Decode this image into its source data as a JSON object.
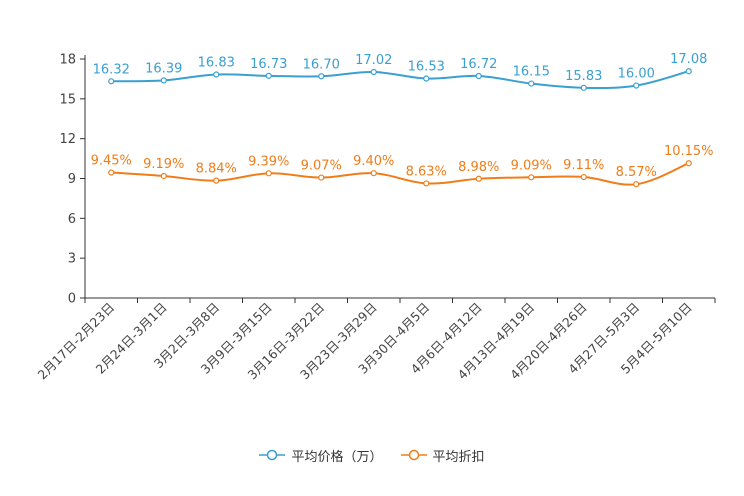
{
  "chart_data": {
    "type": "line",
    "categories": [
      "2月17日-2月23日",
      "2月24日-3月1日",
      "3月2日-3月8日",
      "3月9日-3月15日",
      "3月16日-3月22日",
      "3月23日-3月29日",
      "3月30日-4月5日",
      "4月6日-4月12日",
      "4月13日-4月19日",
      "4月20日-4月26日",
      "4月27日-5月3日",
      "5月4日-5月10日"
    ],
    "ylim": [
      0,
      18
    ],
    "yticks": [
      0,
      3,
      6,
      9,
      12,
      15,
      18
    ],
    "series": [
      {
        "name": "平均价格（万）",
        "color": "#3a9fd1",
        "values": [
          16.32,
          16.39,
          16.83,
          16.73,
          16.7,
          17.02,
          16.53,
          16.72,
          16.15,
          15.83,
          16.0,
          17.08
        ],
        "labels": [
          "16.32",
          "16.39",
          "16.83",
          "16.73",
          "16.70",
          "17.02",
          "16.53",
          "16.72",
          "16.15",
          "15.83",
          "16.00",
          "17.08"
        ]
      },
      {
        "name": "平均折扣",
        "color": "#f07d1a",
        "values": [
          9.45,
          9.19,
          8.84,
          9.39,
          9.07,
          9.4,
          8.63,
          8.98,
          9.09,
          9.11,
          8.57,
          10.15
        ],
        "labels": [
          "9.45%",
          "9.19%",
          "8.84%",
          "9.39%",
          "9.07%",
          "9.40%",
          "8.63%",
          "8.98%",
          "9.09%",
          "9.11%",
          "8.57%",
          "10.15%"
        ]
      }
    ],
    "legend_position": "bottom-center"
  }
}
